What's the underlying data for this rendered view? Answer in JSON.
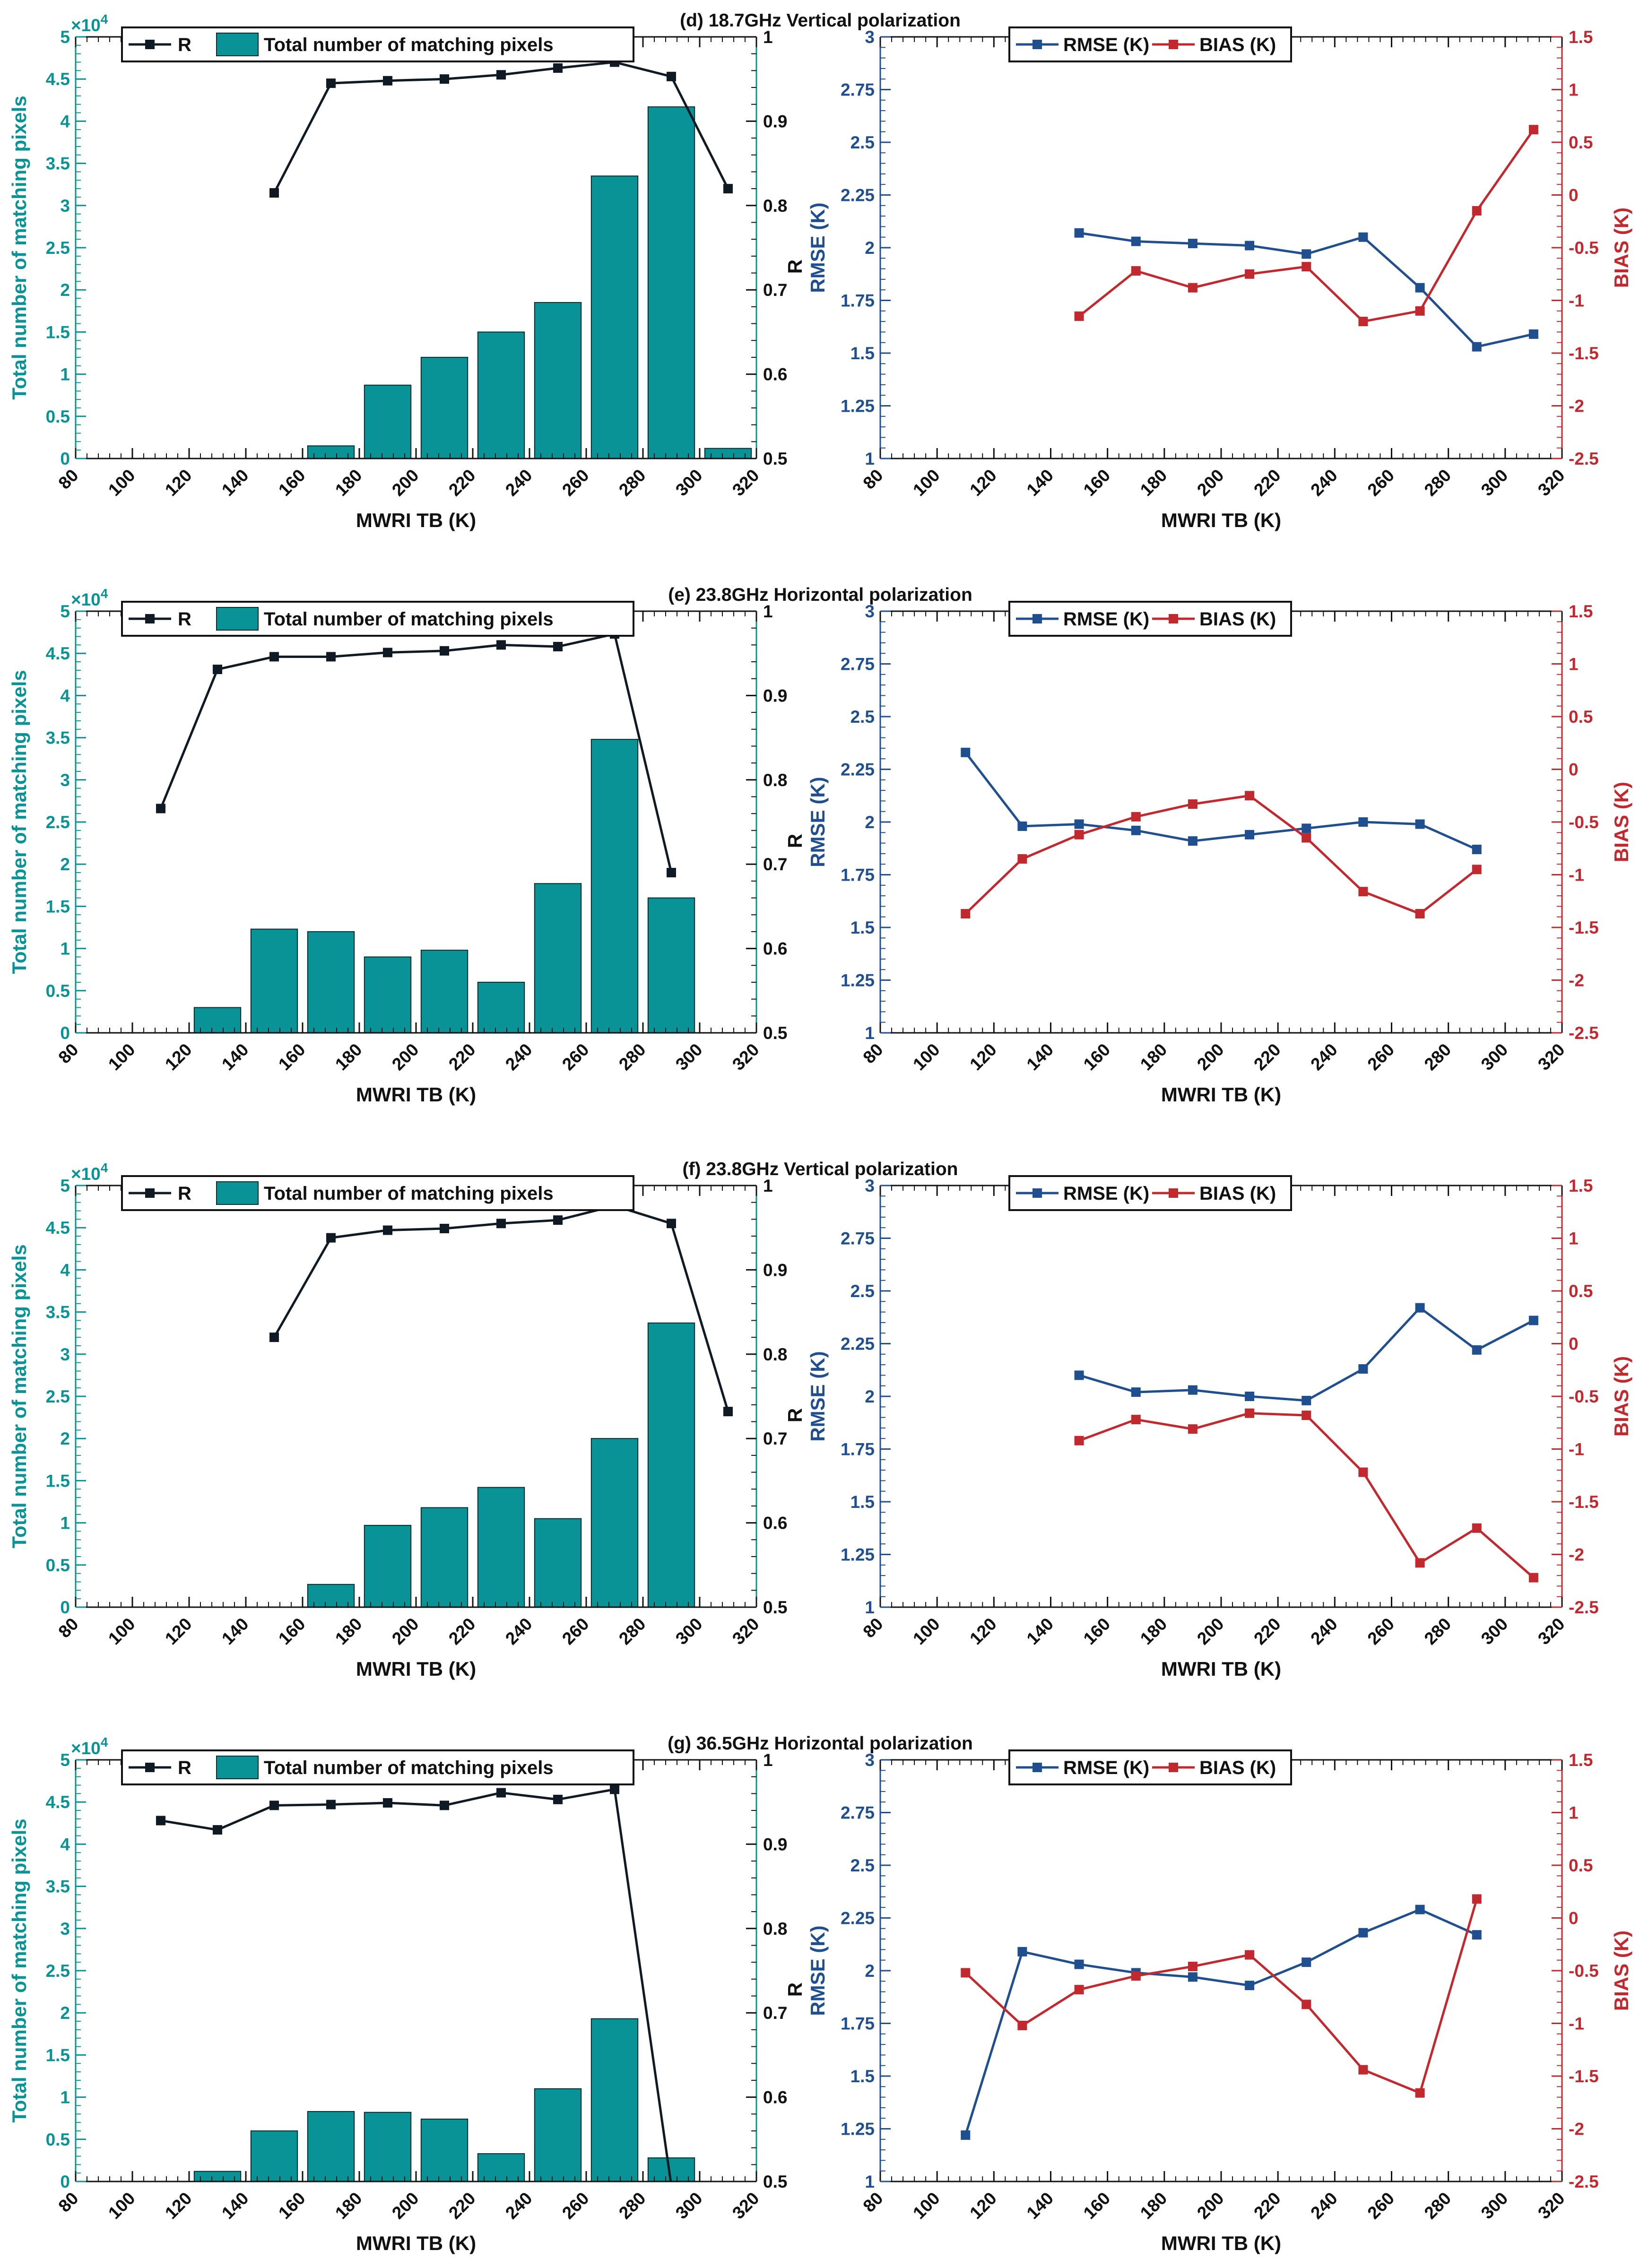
{
  "colors": {
    "bar": "#0a9396",
    "r_line": "#0f1a24",
    "rmse": "#1f4f8f",
    "bias": "#c1292e",
    "axis": "#111111"
  },
  "chart_data": [
    {
      "panel": "d",
      "title": "(d) 18.7GHz Vertical polarization",
      "left": {
        "type": "bar+line",
        "xlabel": "MWRI TB (K)",
        "ylabel": "Total number of matching pixels",
        "y2label": "R",
        "xlim": [
          80,
          320
        ],
        "xticks": [
          "80",
          "100",
          "120",
          "140",
          "160",
          "180",
          "200",
          "220",
          "240",
          "260",
          "280",
          "300",
          "320"
        ],
        "ylim": [
          0,
          5
        ],
        "yticks": [
          "0",
          "0.5",
          "1",
          "1.5",
          "2",
          "2.5",
          "3",
          "3.5",
          "4",
          "4.5",
          "5"
        ],
        "y_exponent": "×10",
        "y_exponent_power": "4",
        "y2lim": [
          0.5,
          1
        ],
        "y2ticks": [
          "0.5",
          "0.6",
          "0.7",
          "0.8",
          "0.9",
          "1"
        ],
        "legend": {
          "line": "R",
          "bar": "Total number of matching pixels"
        },
        "bars": {
          "x": [
            170,
            190,
            210,
            230,
            250,
            270,
            290,
            310
          ],
          "values": [
            0.15,
            0.87,
            1.2,
            1.5,
            1.85,
            3.35,
            4.17,
            0.12
          ]
        },
        "line": {
          "x": [
            150,
            170,
            190,
            210,
            230,
            250,
            270,
            290,
            310
          ],
          "values": [
            0.815,
            0.945,
            0.948,
            0.95,
            0.955,
            0.963,
            0.97,
            0.953,
            0.82
          ]
        }
      },
      "right": {
        "type": "line",
        "xlabel": "MWRI TB (K)",
        "ylabel": "RMSE (K)",
        "y2label": "BIAS (K)",
        "xlim": [
          80,
          320
        ],
        "xticks": [
          "80",
          "100",
          "120",
          "140",
          "160",
          "180",
          "200",
          "220",
          "240",
          "260",
          "280",
          "300",
          "320"
        ],
        "ylim": [
          1,
          3
        ],
        "yticks": [
          "1",
          "1.25",
          "1.5",
          "1.75",
          "2",
          "2.25",
          "2.5",
          "2.75",
          "3"
        ],
        "y2lim": [
          -2.5,
          1.5
        ],
        "y2ticks": [
          "-2.5",
          "-2",
          "-1.5",
          "-1",
          "-0.5",
          "0",
          "0.5",
          "1",
          "1.5"
        ],
        "legend": {
          "series1": "RMSE (K)",
          "series2": "BIAS (K)"
        },
        "rmse": {
          "x": [
            150,
            170,
            190,
            210,
            230,
            250,
            270,
            290,
            310
          ],
          "values": [
            2.07,
            2.03,
            2.02,
            2.01,
            1.97,
            2.05,
            1.81,
            1.53,
            1.59
          ]
        },
        "bias": {
          "x": [
            150,
            170,
            190,
            210,
            230,
            250,
            270,
            290,
            310
          ],
          "values": [
            -1.15,
            -0.72,
            -0.88,
            -0.75,
            -0.68,
            -1.2,
            -1.1,
            -0.15,
            0.62
          ]
        }
      }
    },
    {
      "panel": "e",
      "title": "(e) 23.8GHz Horizontal polarization",
      "left": {
        "type": "bar+line",
        "xlabel": "MWRI TB (K)",
        "ylabel": "Total number of matching pixels",
        "y2label": "R",
        "xlim": [
          80,
          320
        ],
        "xticks": [
          "80",
          "100",
          "120",
          "140",
          "160",
          "180",
          "200",
          "220",
          "240",
          "260",
          "280",
          "300",
          "320"
        ],
        "ylim": [
          0,
          5
        ],
        "yticks": [
          "0",
          "0.5",
          "1",
          "1.5",
          "2",
          "2.5",
          "3",
          "3.5",
          "4",
          "4.5",
          "5"
        ],
        "y_exponent": "×10",
        "y_exponent_power": "4",
        "y2lim": [
          0.5,
          1
        ],
        "y2ticks": [
          "0.5",
          "0.6",
          "0.7",
          "0.8",
          "0.9",
          "1"
        ],
        "legend": {
          "line": "R",
          "bar": "Total number of matching pixels"
        },
        "bars": {
          "x": [
            130,
            150,
            170,
            190,
            210,
            230,
            250,
            270,
            290
          ],
          "values": [
            0.3,
            1.23,
            1.2,
            0.9,
            0.98,
            0.6,
            1.77,
            3.48,
            1.6
          ]
        },
        "line": {
          "x": [
            110,
            130,
            150,
            170,
            190,
            210,
            230,
            250,
            270,
            290
          ],
          "values": [
            0.766,
            0.931,
            0.946,
            0.946,
            0.951,
            0.953,
            0.96,
            0.958,
            0.973,
            0.69
          ]
        }
      },
      "right": {
        "type": "line",
        "xlabel": "MWRI TB (K)",
        "ylabel": "RMSE (K)",
        "y2label": "BIAS (K)",
        "xlim": [
          80,
          320
        ],
        "xticks": [
          "80",
          "100",
          "120",
          "140",
          "160",
          "180",
          "200",
          "220",
          "240",
          "260",
          "280",
          "300",
          "320"
        ],
        "ylim": [
          1,
          3
        ],
        "yticks": [
          "1",
          "1.25",
          "1.5",
          "1.75",
          "2",
          "2.25",
          "2.5",
          "2.75",
          "3"
        ],
        "y2lim": [
          -2.5,
          1.5
        ],
        "y2ticks": [
          "-2.5",
          "-2",
          "-1.5",
          "-1",
          "-0.5",
          "0",
          "0.5",
          "1",
          "1.5"
        ],
        "legend": {
          "series1": "RMSE (K)",
          "series2": "BIAS (K)"
        },
        "rmse": {
          "x": [
            110,
            130,
            150,
            170,
            190,
            210,
            230,
            250,
            270,
            290
          ],
          "values": [
            2.33,
            1.98,
            1.99,
            1.96,
            1.91,
            1.94,
            1.97,
            2.0,
            1.99,
            1.87
          ]
        },
        "bias": {
          "x": [
            110,
            130,
            150,
            170,
            190,
            210,
            230,
            250,
            270,
            290
          ],
          "values": [
            -1.37,
            -0.85,
            -0.62,
            -0.45,
            -0.33,
            -0.25,
            -0.65,
            -1.16,
            -1.37,
            -0.95
          ]
        }
      }
    },
    {
      "panel": "f",
      "title": "(f) 23.8GHz Vertical polarization",
      "left": {
        "type": "bar+line",
        "xlabel": "MWRI TB (K)",
        "ylabel": "Total number of matching pixels",
        "y2label": "R",
        "xlim": [
          80,
          320
        ],
        "xticks": [
          "80",
          "100",
          "120",
          "140",
          "160",
          "180",
          "200",
          "220",
          "240",
          "260",
          "280",
          "300",
          "320"
        ],
        "ylim": [
          0,
          5
        ],
        "yticks": [
          "0",
          "0.5",
          "1",
          "1.5",
          "2",
          "2.5",
          "3",
          "3.5",
          "4",
          "4.5",
          "5"
        ],
        "y_exponent": "×10",
        "y_exponent_power": "4",
        "y2lim": [
          0.5,
          1
        ],
        "y2ticks": [
          "0.5",
          "0.6",
          "0.7",
          "0.8",
          "0.9",
          "1"
        ],
        "legend": {
          "line": "R",
          "bar": "Total number of matching pixels"
        },
        "bars": {
          "x": [
            170,
            190,
            210,
            230,
            250,
            270,
            290
          ],
          "values": [
            0.27,
            0.97,
            1.18,
            1.42,
            1.05,
            2.0,
            3.37
          ]
        },
        "line": {
          "x": [
            150,
            170,
            190,
            210,
            230,
            250,
            270,
            290,
            310
          ],
          "values": [
            0.82,
            0.938,
            0.947,
            0.949,
            0.955,
            0.959,
            0.976,
            0.955,
            0.732
          ]
        }
      },
      "right": {
        "type": "line",
        "xlabel": "MWRI TB (K)",
        "ylabel": "RMSE (K)",
        "y2label": "BIAS (K)",
        "xlim": [
          80,
          320
        ],
        "xticks": [
          "80",
          "100",
          "120",
          "140",
          "160",
          "180",
          "200",
          "220",
          "240",
          "260",
          "280",
          "300",
          "320"
        ],
        "ylim": [
          1,
          3
        ],
        "yticks": [
          "1",
          "1.25",
          "1.5",
          "1.75",
          "2",
          "2.25",
          "2.5",
          "2.75",
          "3"
        ],
        "y2lim": [
          -2.5,
          1.5
        ],
        "y2ticks": [
          "-2.5",
          "-2",
          "-1.5",
          "-1",
          "-0.5",
          "0",
          "0.5",
          "1",
          "1.5"
        ],
        "legend": {
          "series1": "RMSE (K)",
          "series2": "BIAS (K)"
        },
        "rmse": {
          "x": [
            150,
            170,
            190,
            210,
            230,
            250,
            270,
            290,
            310
          ],
          "values": [
            2.1,
            2.02,
            2.03,
            2.0,
            1.98,
            2.13,
            2.42,
            2.22,
            2.36
          ]
        },
        "bias": {
          "x": [
            150,
            170,
            190,
            210,
            230,
            250,
            270,
            290,
            310
          ],
          "values": [
            -0.92,
            -0.72,
            -0.81,
            -0.66,
            -0.68,
            -1.22,
            -2.08,
            -1.75,
            -2.22
          ]
        }
      }
    },
    {
      "panel": "g",
      "title": "(g) 36.5GHz Horizontal polarization",
      "left": {
        "type": "bar+line",
        "xlabel": "MWRI TB (K)",
        "ylabel": "Total number of matching pixels",
        "y2label": "R",
        "xlim": [
          80,
          320
        ],
        "xticks": [
          "80",
          "100",
          "120",
          "140",
          "160",
          "180",
          "200",
          "220",
          "240",
          "260",
          "280",
          "300",
          "320"
        ],
        "ylim": [
          0,
          5
        ],
        "yticks": [
          "0",
          "0.5",
          "1",
          "1.5",
          "2",
          "2.5",
          "3",
          "3.5",
          "4",
          "4.5",
          "5"
        ],
        "y_exponent": "×10",
        "y_exponent_power": "4",
        "y2lim": [
          0.5,
          1
        ],
        "y2ticks": [
          "0.5",
          "0.6",
          "0.7",
          "0.8",
          "0.9",
          "1"
        ],
        "legend": {
          "line": "R",
          "bar": "Total number of matching pixels"
        },
        "bars": {
          "x": [
            130,
            150,
            170,
            190,
            210,
            230,
            250,
            270,
            290
          ],
          "values": [
            0.12,
            0.6,
            0.83,
            0.82,
            0.74,
            0.33,
            1.1,
            1.93,
            0.28
          ]
        },
        "line": {
          "x": [
            110,
            130,
            150,
            170,
            190,
            210,
            230,
            250,
            270,
            290
          ],
          "values": [
            0.928,
            0.917,
            0.946,
            0.947,
            0.949,
            0.946,
            0.961,
            0.953,
            0.965,
            0.495
          ]
        }
      },
      "right": {
        "type": "line",
        "xlabel": "MWRI TB (K)",
        "ylabel": "RMSE (K)",
        "y2label": "BIAS (K)",
        "xlim": [
          80,
          320
        ],
        "xticks": [
          "80",
          "100",
          "120",
          "140",
          "160",
          "180",
          "200",
          "220",
          "240",
          "260",
          "280",
          "300",
          "320"
        ],
        "ylim": [
          1,
          3
        ],
        "yticks": [
          "1",
          "1.25",
          "1.5",
          "1.75",
          "2",
          "2.25",
          "2.5",
          "2.75",
          "3"
        ],
        "y2lim": [
          -2.5,
          1.5
        ],
        "y2ticks": [
          "-2.5",
          "-2",
          "-1.5",
          "-1",
          "-0.5",
          "0",
          "0.5",
          "1",
          "1.5"
        ],
        "legend": {
          "series1": "RMSE (K)",
          "series2": "BIAS (K)"
        },
        "rmse": {
          "x": [
            110,
            130,
            150,
            170,
            190,
            210,
            230,
            250,
            270,
            290
          ],
          "values": [
            1.22,
            2.09,
            2.03,
            1.99,
            1.97,
            1.93,
            2.04,
            2.18,
            2.29,
            2.17
          ]
        },
        "bias": {
          "x": [
            110,
            130,
            150,
            170,
            190,
            210,
            230,
            250,
            270,
            290
          ],
          "values": [
            -0.52,
            -1.02,
            -0.68,
            -0.55,
            -0.46,
            -0.35,
            -0.82,
            -1.44,
            -1.66,
            0.18
          ]
        }
      }
    }
  ]
}
